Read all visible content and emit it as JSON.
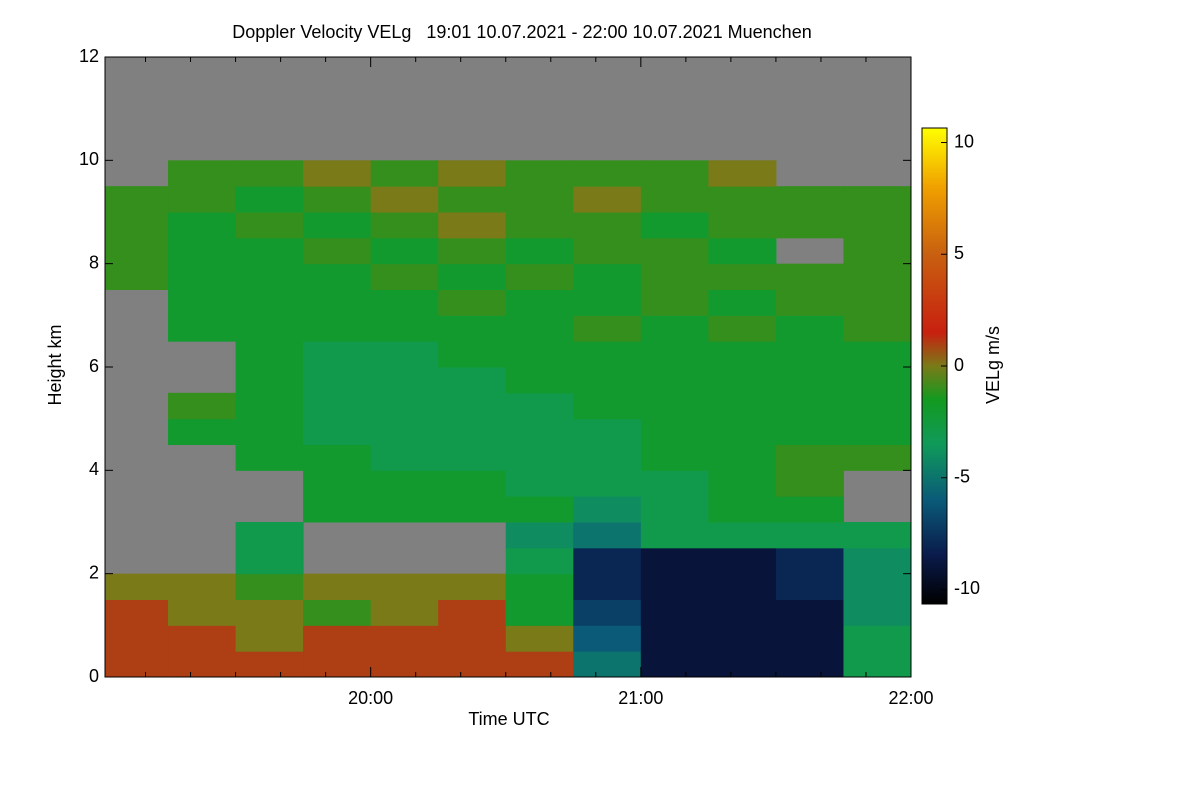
{
  "chart_data": {
    "type": "heatmap",
    "title": "Doppler Velocity VELg   19:01 10.07.2021 - 22:00 10.07.2021 Muenchen",
    "x_label": "Time UTC",
    "y_label": "Height km",
    "colorbar_label": "VELg m/s",
    "xlim": [
      19.0167,
      22
    ],
    "ylim": [
      0,
      12
    ],
    "xticks": [
      {
        "value": 20,
        "label": "20:00"
      },
      {
        "value": 21,
        "label": "21:00"
      },
      {
        "value": 22,
        "label": "22:00"
      }
    ],
    "xminorticks": [
      19.1667,
      19.3333,
      19.5,
      19.6667,
      19.8333,
      20.1667,
      20.3333,
      20.5,
      20.6667,
      20.8333,
      21.1667,
      21.3333,
      21.5,
      21.6667,
      21.8333
    ],
    "yticks": [
      0,
      2,
      4,
      6,
      8,
      10,
      12
    ],
    "zlim": [
      -10.65,
      10.65
    ],
    "zticks": [
      -10,
      -5,
      0,
      5,
      10
    ],
    "missing_color": "#808080",
    "colormap": [
      {
        "value": -10.65,
        "color": "#000000"
      },
      {
        "value": -8.5,
        "color": "#0a1a4a"
      },
      {
        "value": -6,
        "color": "#0a5a78"
      },
      {
        "value": -3.5,
        "color": "#109a5a"
      },
      {
        "value": -1.5,
        "color": "#139a20"
      },
      {
        "value": 0,
        "color": "#7a7a18"
      },
      {
        "value": 1.5,
        "color": "#c82010"
      },
      {
        "value": 5,
        "color": "#c86010"
      },
      {
        "value": 8,
        "color": "#f0a000"
      },
      {
        "value": 10.65,
        "color": "#ffff00"
      }
    ],
    "x_bins": [
      19.0,
      19.25,
      19.5,
      19.75,
      20.0,
      20.25,
      20.5,
      20.75,
      21.0,
      21.25,
      21.5,
      21.75,
      22.0
    ],
    "y_bins": [
      0,
      0.5,
      1,
      1.5,
      2,
      2.5,
      3,
      3.5,
      4,
      4.5,
      5,
      5.5,
      6,
      6.5,
      7,
      7.5,
      8,
      8.5,
      9,
      9.5,
      10,
      10.5,
      11,
      11.5,
      12
    ],
    "values": [
      [
        1,
        1,
        1,
        1,
        1,
        1,
        1,
        -5,
        -9,
        -9,
        -9,
        -3
      ],
      [
        1,
        1,
        0,
        1,
        1,
        1,
        0,
        -6,
        -9,
        -9,
        -9,
        -3
      ],
      [
        1,
        0,
        0,
        -1,
        0,
        1,
        -2,
        -7,
        -9,
        -9,
        -9,
        -4
      ],
      [
        0,
        0,
        -1,
        0,
        0,
        0,
        -2,
        -8,
        -9,
        -9,
        -8,
        -4
      ],
      [
        null,
        null,
        -3,
        null,
        null,
        null,
        -3,
        -8,
        -9,
        -9,
        -8,
        -4
      ],
      [
        null,
        null,
        -3,
        null,
        null,
        null,
        -4,
        -5,
        -3,
        -3,
        -3,
        -3
      ],
      [
        null,
        null,
        null,
        -2,
        -2,
        -2,
        -2,
        -4,
        -3,
        -2,
        -2,
        null
      ],
      [
        null,
        null,
        null,
        -2,
        -2,
        -2,
        -3,
        -3,
        -3,
        -2,
        -1,
        null
      ],
      [
        null,
        null,
        -2,
        -2,
        -3,
        -3,
        -3,
        -3,
        -2,
        -2,
        -1,
        -1
      ],
      [
        null,
        -2,
        -2,
        -3,
        -3,
        -3,
        -3,
        -3,
        -2,
        -2,
        -2,
        -2
      ],
      [
        null,
        -1,
        -2,
        -3,
        -3,
        -3,
        -3,
        -2,
        -2,
        -2,
        -2,
        -2
      ],
      [
        null,
        null,
        -2,
        -3,
        -3,
        -3,
        -2,
        -2,
        -2,
        -2,
        -2,
        -2
      ],
      [
        null,
        null,
        -2,
        -3,
        -3,
        -2,
        -2,
        -2,
        -2,
        -2,
        -2,
        -2
      ],
      [
        null,
        -2,
        -2,
        -2,
        -2,
        -2,
        -2,
        -1,
        -2,
        -1,
        -2,
        -1
      ],
      [
        null,
        -2,
        -2,
        -2,
        -2,
        -1,
        -2,
        -2,
        -1,
        -2,
        -1,
        -1
      ],
      [
        -1,
        -2,
        -2,
        -2,
        -1,
        -2,
        -1,
        -2,
        -1,
        -1,
        -1,
        -1
      ],
      [
        -1,
        -2,
        -2,
        -1,
        -2,
        -1,
        -2,
        -1,
        -1,
        -2,
        null,
        -1
      ],
      [
        -1,
        -2,
        -1,
        -2,
        -1,
        0,
        -1,
        -1,
        -2,
        -1,
        -1,
        -1
      ],
      [
        -1,
        -1,
        -2,
        -1,
        0,
        -1,
        -1,
        0,
        -1,
        -1,
        -1,
        -1
      ],
      [
        null,
        -1,
        -1,
        0,
        -1,
        0,
        -1,
        -1,
        -1,
        0,
        null,
        null
      ],
      [
        null,
        null,
        null,
        null,
        null,
        null,
        null,
        null,
        null,
        null,
        null,
        null
      ],
      [
        null,
        null,
        null,
        null,
        null,
        null,
        null,
        null,
        null,
        null,
        null,
        null
      ],
      [
        null,
        null,
        null,
        null,
        null,
        null,
        null,
        null,
        null,
        null,
        null,
        null
      ],
      [
        null,
        null,
        null,
        null,
        null,
        null,
        null,
        null,
        null,
        null,
        null,
        null
      ]
    ]
  }
}
